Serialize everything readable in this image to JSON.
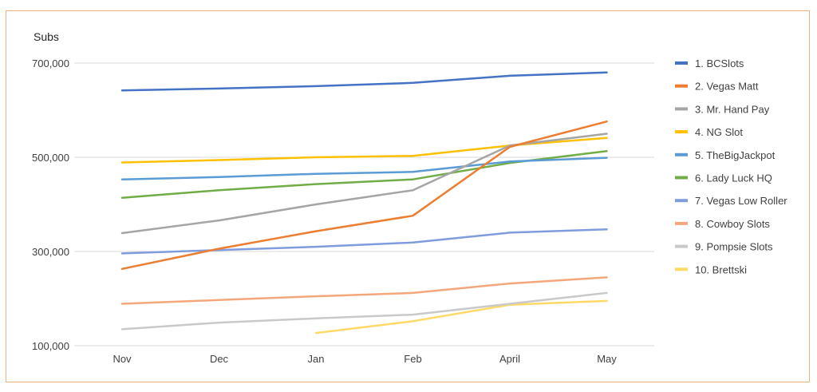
{
  "chart_data": {
    "type": "line",
    "title": "",
    "ylabel": "Subs",
    "xlabel": "",
    "categories": [
      "Nov",
      "Dec",
      "Jan",
      "Feb",
      "April",
      "May"
    ],
    "ylim": [
      100000,
      700000
    ],
    "yticks": [
      100000,
      300000,
      500000,
      700000
    ],
    "ytick_labels": [
      "100,000",
      "300,000",
      "500,000",
      "700,000"
    ],
    "grid": true,
    "legend": "right",
    "series": [
      {
        "name": "1. BCSlots",
        "color": "#4472c4",
        "values": [
          642000,
          646000,
          651000,
          658000,
          673000,
          680000
        ]
      },
      {
        "name": "2. Vegas Matt",
        "color": "#ed7d31",
        "values": [
          263000,
          306000,
          343000,
          376000,
          522000,
          576000
        ]
      },
      {
        "name": "3. Mr. Hand Pay",
        "color": "#a5a5a5",
        "values": [
          339000,
          366000,
          400000,
          430000,
          525000,
          550000
        ]
      },
      {
        "name": "4. NG Slot",
        "color": "#ffc000",
        "values": [
          489000,
          494000,
          500000,
          503000,
          525000,
          541000
        ]
      },
      {
        "name": "5. TheBigJackpot",
        "color": "#5b9bd5",
        "values": [
          453000,
          458000,
          465000,
          469000,
          491000,
          499000
        ]
      },
      {
        "name": "6. Lady Luck HQ",
        "color": "#70ad47",
        "values": [
          414000,
          430000,
          443000,
          453000,
          488000,
          513000
        ]
      },
      {
        "name": "7. Vegas Low Roller",
        "color": "#7f9ddc",
        "values": [
          296000,
          303000,
          310000,
          319000,
          340000,
          347000
        ]
      },
      {
        "name": "8. Cowboy Slots",
        "color": "#f4a77a",
        "values": [
          189000,
          197000,
          205000,
          212000,
          232000,
          245000
        ]
      },
      {
        "name": "9. Pompsie Slots",
        "color": "#c9c9c9",
        "values": [
          135000,
          149000,
          158000,
          166000,
          189000,
          212000
        ]
      },
      {
        "name": "10. Brettski",
        "color": "#ffd966",
        "values": [
          null,
          null,
          127000,
          152000,
          187000,
          195000
        ]
      }
    ]
  }
}
